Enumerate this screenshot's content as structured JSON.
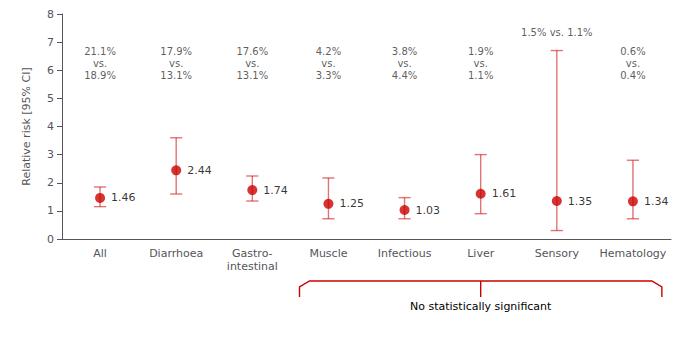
{
  "chart_data": {
    "type": "scatter",
    "categories": [
      "All",
      "Diarrhoea",
      "Gastro-\nintestinal",
      "Muscle",
      "Infectious",
      "Liver",
      "Sensory",
      "Hematology"
    ],
    "values": [
      1.46,
      2.44,
      1.74,
      1.25,
      1.03,
      1.61,
      1.35,
      1.34
    ],
    "ci_low": [
      1.15,
      1.6,
      1.35,
      0.72,
      0.72,
      0.9,
      0.3,
      0.72
    ],
    "ci_high": [
      1.85,
      3.6,
      2.24,
      2.17,
      1.47,
      3.0,
      6.7,
      2.8
    ],
    "color": "#cc0000",
    "data_labels": true,
    "ylabel": "Relative risk [95% CI]",
    "ylim": [
      0,
      8
    ],
    "yticks": [
      0,
      1,
      2,
      3,
      4,
      5,
      6,
      7,
      8
    ],
    "grid": false,
    "annotations": [
      {
        "category": "All",
        "y": 6.24,
        "text": "21.1%\nvs.\n18.9%"
      },
      {
        "category": "Diarrhoea",
        "y": 6.24,
        "text": "17.9%\nvs.\n13.1%"
      },
      {
        "category": "Gastro-\nintestinal",
        "y": 6.24,
        "text": "17.6%\nvs.\n13.1%"
      },
      {
        "category": "Muscle",
        "y": 6.24,
        "text": "4.2%\nvs.\n3.3%"
      },
      {
        "category": "Infectious",
        "y": 6.24,
        "text": "3.8%\nvs.\n4.4%"
      },
      {
        "category": "Liver",
        "y": 6.24,
        "text": "1.9%\nvs.\n1.1%"
      },
      {
        "category": "Sensory",
        "y": 7.36,
        "text": "1.5% vs. 1.1%"
      },
      {
        "category": "Hematology",
        "y": 6.24,
        "text": "0.6%\nvs.\n0.4%"
      }
    ],
    "bracket": {
      "from": "Muscle",
      "to": "Hematology",
      "text": "No statistically significant",
      "color": "#cc0000"
    }
  }
}
